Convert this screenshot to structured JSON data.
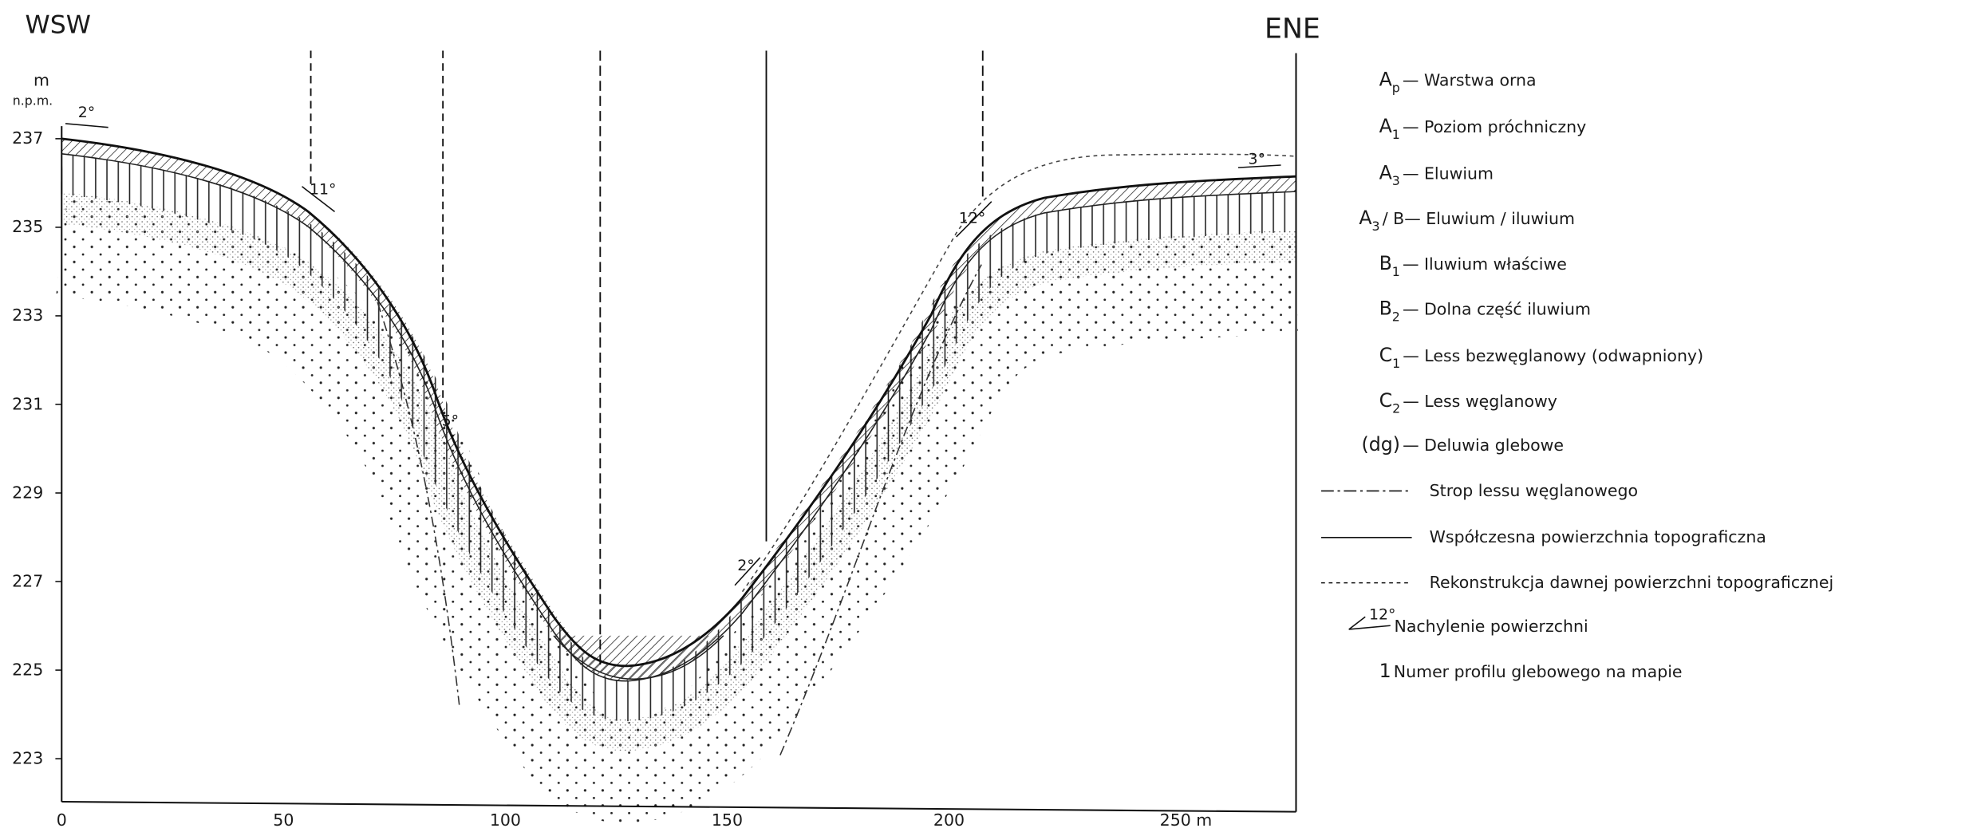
{
  "header": {
    "left": "WSW",
    "right": "ENE"
  },
  "y_axis": {
    "unit": "m",
    "unit_note": "n.p.m.",
    "ticks": [
      "237",
      "235",
      "233",
      "231",
      "229",
      "227",
      "225",
      "223"
    ]
  },
  "x_axis": {
    "ticks": [
      "0",
      "50",
      "100",
      "150",
      "200",
      "250 m"
    ]
  },
  "slopes": [
    "2°",
    "11°",
    "5°",
    "2°",
    "12°",
    "3°"
  ],
  "legend": [
    {
      "symbol": "A",
      "sub": "p",
      "text": "— Warstwa  orna"
    },
    {
      "symbol": "A",
      "sub": "1",
      "text": "— Poziom  próchniczny"
    },
    {
      "symbol": "A",
      "sub": "3",
      "text": "— Eluwium"
    },
    {
      "symbol": "A",
      "sub": "3",
      "text": "/ B— Eluwium / iluwium"
    },
    {
      "symbol": "B",
      "sub": "1",
      "text": "— Iluwium  właściwe"
    },
    {
      "symbol": "B",
      "sub": "2",
      "text": "— Dolna   część   iluwium"
    },
    {
      "symbol": "C",
      "sub": "1",
      "text": "— Less  bezwęglanowy (odwapniony)"
    },
    {
      "symbol": "C",
      "sub": "2",
      "text": "— Less  węglanowy"
    },
    {
      "symbol": "(dg)",
      "text": "— Deluwia  glebowe"
    },
    {
      "text": "Strop  lessu  węglanowego"
    },
    {
      "text": "Współczesna   powierzchnia    topograficzna"
    },
    {
      "text": "Rekonstrukcja    dawnej    powierzchni    topograficznej"
    },
    {
      "symbol": "12°",
      "text": "Nachylenie     powierzchni"
    },
    {
      "symbol": "1",
      "text": "Numer   profilu   glebowego   na    mapie"
    }
  ]
}
